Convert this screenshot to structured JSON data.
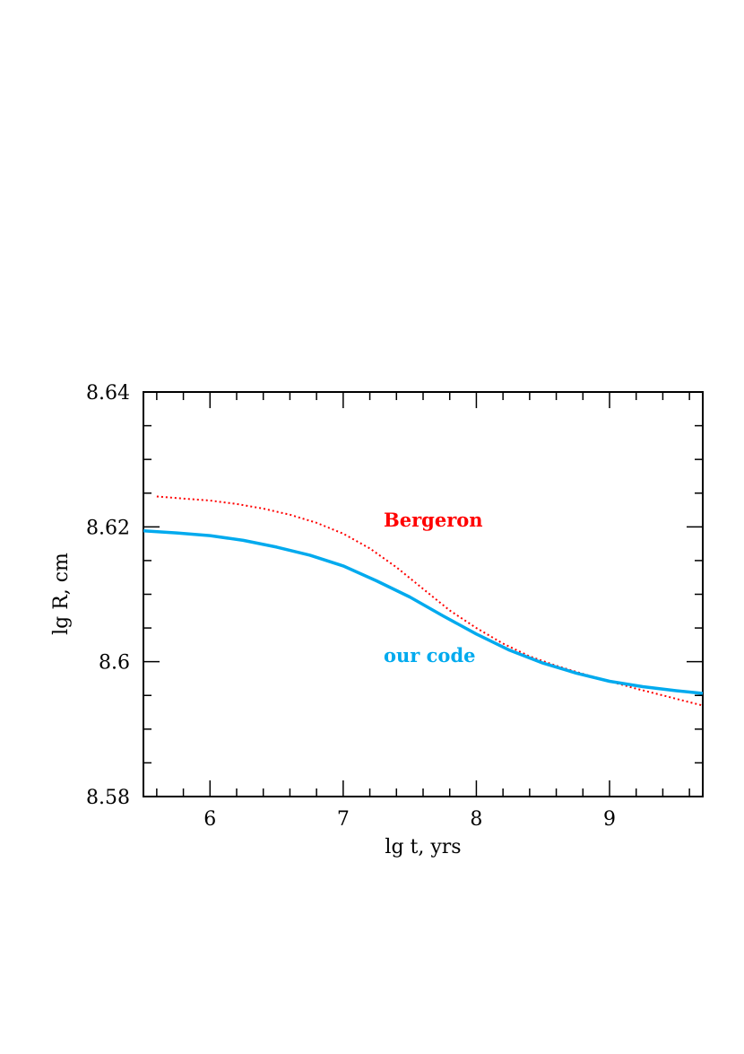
{
  "chart_data": {
    "type": "line",
    "xlabel": "lg t, yrs",
    "ylabel": "lg R, cm",
    "xlim": [
      5.5,
      9.7
    ],
    "ylim": [
      8.58,
      8.64
    ],
    "x_ticks": [
      "6",
      "7",
      "8",
      "9"
    ],
    "x_tick_values": [
      6,
      7,
      8,
      9
    ],
    "y_ticks": [
      "8.58",
      "8.6",
      "8.62",
      "8.64"
    ],
    "y_tick_values": [
      8.58,
      8.6,
      8.62,
      8.64
    ],
    "x_minor_step": 0.2,
    "y_minor_step": 0.005,
    "series": [
      {
        "name": "Bergeron",
        "color": "#ff0000",
        "style": "dotted",
        "x": [
          5.6,
          5.8,
          6.0,
          6.2,
          6.4,
          6.6,
          6.8,
          7.0,
          7.2,
          7.4,
          7.6,
          7.8,
          8.0,
          8.2,
          8.4,
          8.6,
          8.8,
          9.0,
          9.2,
          9.4,
          9.6,
          9.7
        ],
        "y": [
          8.6245,
          8.6242,
          8.6239,
          8.6234,
          8.6227,
          8.6218,
          8.6206,
          8.619,
          8.6168,
          8.614,
          8.6108,
          8.6076,
          8.605,
          8.6027,
          8.6008,
          8.5994,
          8.5982,
          8.5971,
          8.596,
          8.595,
          8.594,
          8.5935
        ]
      },
      {
        "name": "our code",
        "color": "#00aaee",
        "style": "solid",
        "x": [
          5.5,
          5.75,
          6.0,
          6.25,
          6.5,
          6.75,
          7.0,
          7.25,
          7.5,
          7.75,
          8.0,
          8.25,
          8.5,
          8.75,
          9.0,
          9.25,
          9.5,
          9.7
        ],
        "y": [
          8.6194,
          8.6191,
          8.6187,
          8.618,
          8.617,
          8.6158,
          8.6142,
          8.612,
          8.6096,
          8.6068,
          8.6041,
          8.6017,
          8.5998,
          8.5983,
          8.5971,
          8.5963,
          8.5957,
          8.5953
        ]
      }
    ]
  }
}
